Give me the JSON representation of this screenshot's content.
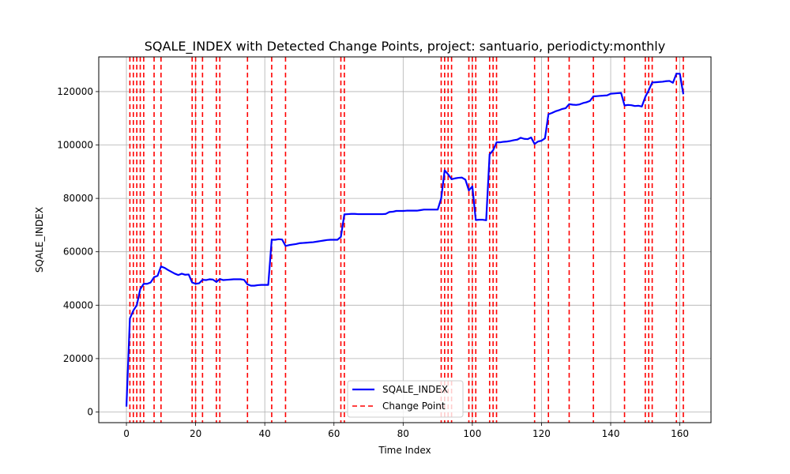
{
  "chart_data": {
    "type": "line",
    "title": "SQALE_INDEX with Detected Change Points, project: santuario, periodicty:monthly",
    "xlabel": "Time Index",
    "ylabel": "SQALE_INDEX",
    "xlim": [
      -8,
      169
    ],
    "ylim": [
      -4000,
      133000
    ],
    "x_ticks": [
      0,
      20,
      40,
      60,
      80,
      100,
      120,
      140,
      160
    ],
    "y_ticks": [
      0,
      20000,
      40000,
      60000,
      80000,
      100000,
      120000
    ],
    "grid": true,
    "legend_position": "lower center",
    "series": [
      {
        "name": "SQALE_INDEX",
        "color": "#0000ff",
        "points": [
          [
            0,
            2000
          ],
          [
            1,
            35000
          ],
          [
            2,
            38000
          ],
          [
            3,
            40000
          ],
          [
            4,
            46000
          ],
          [
            5,
            48000
          ],
          [
            6,
            48000
          ],
          [
            7,
            48500
          ],
          [
            8,
            50500
          ],
          [
            9,
            51000
          ],
          [
            10,
            54500
          ],
          [
            11,
            54000
          ],
          [
            12,
            53200
          ],
          [
            13,
            52500
          ],
          [
            14,
            51800
          ],
          [
            15,
            51300
          ],
          [
            16,
            51800
          ],
          [
            17,
            51400
          ],
          [
            18,
            51500
          ],
          [
            19,
            48500
          ],
          [
            20,
            48000
          ],
          [
            21,
            48200
          ],
          [
            22,
            49500
          ],
          [
            23,
            49400
          ],
          [
            24,
            49700
          ],
          [
            25,
            49600
          ],
          [
            26,
            48700
          ],
          [
            27,
            49800
          ],
          [
            28,
            49400
          ],
          [
            29,
            49500
          ],
          [
            30,
            49600
          ],
          [
            31,
            49700
          ],
          [
            32,
            49700
          ],
          [
            33,
            49700
          ],
          [
            34,
            49500
          ],
          [
            35,
            47800
          ],
          [
            36,
            47300
          ],
          [
            37,
            47300
          ],
          [
            38,
            47500
          ],
          [
            39,
            47600
          ],
          [
            40,
            47600
          ],
          [
            41,
            47600
          ],
          [
            42,
            64500
          ],
          [
            43,
            64500
          ],
          [
            44,
            64700
          ],
          [
            45,
            64600
          ],
          [
            46,
            62200
          ],
          [
            47,
            62500
          ],
          [
            48,
            62700
          ],
          [
            49,
            62900
          ],
          [
            50,
            63200
          ],
          [
            51,
            63300
          ],
          [
            52,
            63400
          ],
          [
            53,
            63500
          ],
          [
            54,
            63600
          ],
          [
            55,
            63800
          ],
          [
            56,
            64000
          ],
          [
            57,
            64200
          ],
          [
            58,
            64400
          ],
          [
            59,
            64500
          ],
          [
            60,
            64500
          ],
          [
            61,
            64500
          ],
          [
            62,
            65600
          ],
          [
            63,
            74000
          ],
          [
            64,
            74100
          ],
          [
            65,
            74200
          ],
          [
            66,
            74200
          ],
          [
            67,
            74100
          ],
          [
            68,
            74100
          ],
          [
            69,
            74100
          ],
          [
            70,
            74100
          ],
          [
            71,
            74100
          ],
          [
            72,
            74100
          ],
          [
            73,
            74100
          ],
          [
            74,
            74100
          ],
          [
            75,
            74200
          ],
          [
            76,
            74900
          ],
          [
            77,
            75000
          ],
          [
            78,
            75300
          ],
          [
            79,
            75300
          ],
          [
            80,
            75300
          ],
          [
            81,
            75400
          ],
          [
            82,
            75400
          ],
          [
            83,
            75400
          ],
          [
            84,
            75400
          ],
          [
            85,
            75600
          ],
          [
            86,
            75800
          ],
          [
            87,
            75800
          ],
          [
            88,
            75800
          ],
          [
            89,
            75800
          ],
          [
            90,
            75800
          ],
          [
            91,
            80000
          ],
          [
            92,
            90500
          ],
          [
            93,
            89000
          ],
          [
            94,
            87200
          ],
          [
            95,
            87500
          ],
          [
            96,
            87700
          ],
          [
            97,
            87800
          ],
          [
            98,
            87000
          ],
          [
            99,
            83000
          ],
          [
            100,
            84500
          ],
          [
            101,
            71900
          ],
          [
            102,
            72000
          ],
          [
            103,
            72000
          ],
          [
            104,
            71800
          ],
          [
            105,
            96500
          ],
          [
            106,
            98000
          ],
          [
            107,
            101000
          ],
          [
            108,
            101000
          ],
          [
            109,
            101200
          ],
          [
            110,
            101300
          ],
          [
            111,
            101500
          ],
          [
            112,
            101800
          ],
          [
            113,
            102000
          ],
          [
            114,
            102700
          ],
          [
            115,
            102300
          ],
          [
            116,
            102200
          ],
          [
            117,
            102800
          ],
          [
            118,
            100400
          ],
          [
            119,
            101300
          ],
          [
            120,
            101600
          ],
          [
            121,
            102500
          ],
          [
            122,
            111500
          ],
          [
            123,
            112000
          ],
          [
            124,
            112600
          ],
          [
            125,
            113000
          ],
          [
            126,
            113500
          ],
          [
            127,
            113800
          ],
          [
            128,
            115300
          ],
          [
            129,
            115100
          ],
          [
            130,
            115000
          ],
          [
            131,
            115200
          ],
          [
            132,
            115700
          ],
          [
            133,
            116000
          ],
          [
            134,
            116500
          ],
          [
            135,
            118200
          ],
          [
            136,
            118300
          ],
          [
            137,
            118400
          ],
          [
            138,
            118500
          ],
          [
            139,
            118600
          ],
          [
            140,
            119200
          ],
          [
            141,
            119300
          ],
          [
            142,
            119400
          ],
          [
            143,
            119500
          ],
          [
            144,
            114800
          ],
          [
            145,
            115000
          ],
          [
            146,
            114900
          ],
          [
            147,
            114600
          ],
          [
            148,
            114700
          ],
          [
            149,
            114400
          ],
          [
            150,
            118000
          ],
          [
            151,
            120500
          ],
          [
            152,
            123400
          ],
          [
            153,
            123500
          ],
          [
            154,
            123600
          ],
          [
            155,
            123700
          ],
          [
            156,
            123900
          ],
          [
            157,
            124000
          ],
          [
            158,
            123300
          ],
          [
            159,
            126700
          ],
          [
            160,
            126700
          ],
          [
            161,
            119000
          ]
        ]
      }
    ],
    "change_points": {
      "name": "Change Point",
      "color": "#ff0000",
      "x": [
        1,
        2,
        3,
        4,
        5,
        8,
        10,
        19,
        20,
        22,
        26,
        27,
        35,
        42,
        46,
        62,
        63,
        91,
        92,
        93,
        94,
        99,
        100,
        101,
        105,
        106,
        107,
        118,
        122,
        128,
        135,
        144,
        150,
        151,
        152,
        159,
        161
      ]
    }
  }
}
